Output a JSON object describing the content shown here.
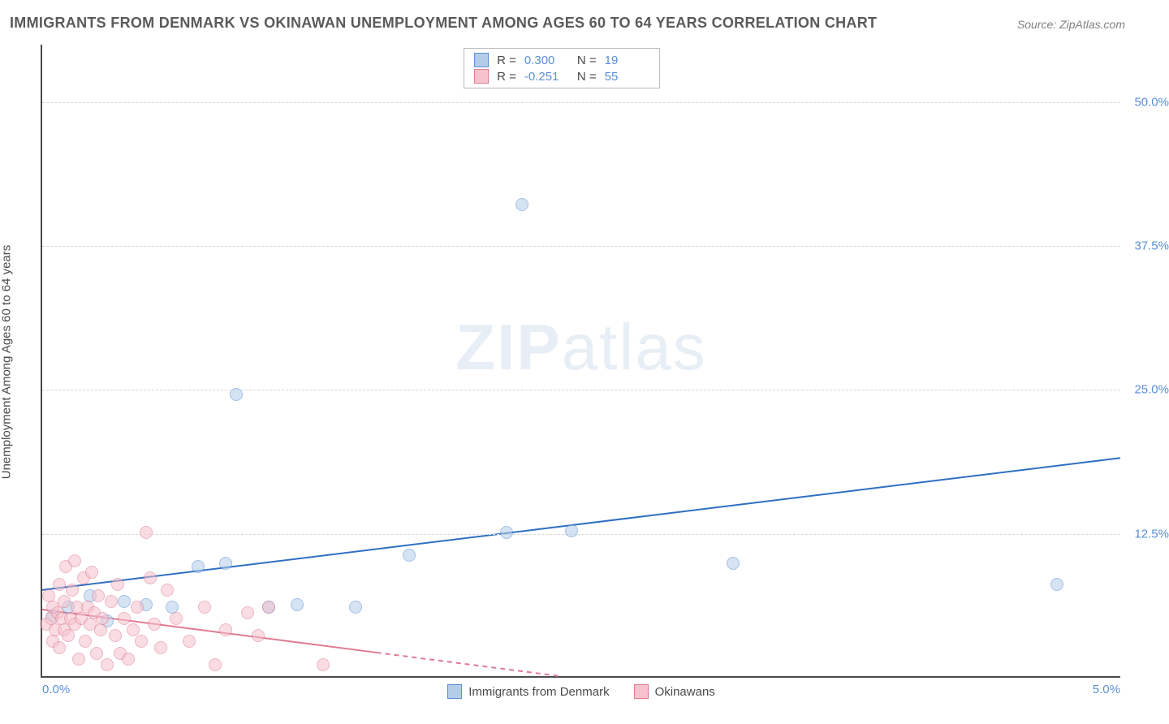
{
  "title": "IMMIGRANTS FROM DENMARK VS OKINAWAN UNEMPLOYMENT AMONG AGES 60 TO 64 YEARS CORRELATION CHART",
  "source": "Source: ZipAtlas.com",
  "ylabel": "Unemployment Among Ages 60 to 64 years",
  "watermark_bold": "ZIP",
  "watermark_rest": "atlas",
  "chart": {
    "type": "scatter-with-trend",
    "xlim": [
      0.0,
      5.0
    ],
    "ylim": [
      0.0,
      55.0
    ],
    "x_tick_left": "0.0%",
    "x_tick_right": "5.0%",
    "y_ticks": [
      {
        "v": 12.5,
        "label": "12.5%"
      },
      {
        "v": 25.0,
        "label": "25.0%"
      },
      {
        "v": 37.5,
        "label": "37.5%"
      },
      {
        "v": 50.0,
        "label": "50.0%"
      }
    ],
    "grid_color": "#d8d8d8",
    "axis_color": "#4a4a4a",
    "background_color": "#ffffff",
    "tick_label_color": "#5b8fd6",
    "point_radius": 8,
    "point_opacity": 0.55,
    "series": [
      {
        "name": "Immigrants from Denmark",
        "fill": "#b3cde8",
        "stroke": "#5b8fd6",
        "line_color": "#2f6fc2",
        "line_width": 2,
        "R": "0.300",
        "N": "19",
        "trend": {
          "x1": 0.0,
          "y1": 7.5,
          "x2": 5.0,
          "y2": 19.0,
          "dashed_from_x": null
        },
        "points": [
          {
            "x": 0.05,
            "y": 5.2
          },
          {
            "x": 0.12,
            "y": 6.0
          },
          {
            "x": 0.22,
            "y": 7.0
          },
          {
            "x": 0.3,
            "y": 4.8
          },
          {
            "x": 0.38,
            "y": 6.5
          },
          {
            "x": 0.48,
            "y": 6.2
          },
          {
            "x": 0.6,
            "y": 6.0
          },
          {
            "x": 0.72,
            "y": 9.5
          },
          {
            "x": 0.85,
            "y": 9.8
          },
          {
            "x": 0.9,
            "y": 24.5
          },
          {
            "x": 1.05,
            "y": 6.0
          },
          {
            "x": 1.18,
            "y": 6.2
          },
          {
            "x": 1.45,
            "y": 6.0
          },
          {
            "x": 1.7,
            "y": 10.5
          },
          {
            "x": 2.15,
            "y": 12.5
          },
          {
            "x": 2.22,
            "y": 41.0
          },
          {
            "x": 2.45,
            "y": 12.6
          },
          {
            "x": 3.2,
            "y": 9.8
          },
          {
            "x": 4.7,
            "y": 8.0
          }
        ]
      },
      {
        "name": "Okinawans",
        "fill": "#f5c2cd",
        "stroke": "#e07a92",
        "line_color": "#e07a92",
        "line_width": 2,
        "R": "-0.251",
        "N": "55",
        "trend": {
          "x1": 0.0,
          "y1": 5.8,
          "x2": 2.4,
          "y2": 0.0,
          "dashed_from_x": 1.55
        },
        "points": [
          {
            "x": 0.02,
            "y": 4.5
          },
          {
            "x": 0.03,
            "y": 7.0
          },
          {
            "x": 0.04,
            "y": 5.0
          },
          {
            "x": 0.05,
            "y": 3.0
          },
          {
            "x": 0.05,
            "y": 6.0
          },
          {
            "x": 0.06,
            "y": 4.0
          },
          {
            "x": 0.07,
            "y": 5.5
          },
          {
            "x": 0.08,
            "y": 2.5
          },
          {
            "x": 0.08,
            "y": 8.0
          },
          {
            "x": 0.09,
            "y": 5.0
          },
          {
            "x": 0.1,
            "y": 4.0
          },
          {
            "x": 0.1,
            "y": 6.5
          },
          {
            "x": 0.11,
            "y": 9.5
          },
          {
            "x": 0.12,
            "y": 3.5
          },
          {
            "x": 0.13,
            "y": 5.0
          },
          {
            "x": 0.14,
            "y": 7.5
          },
          {
            "x": 0.15,
            "y": 4.5
          },
          {
            "x": 0.15,
            "y": 10.0
          },
          {
            "x": 0.16,
            "y": 6.0
          },
          {
            "x": 0.17,
            "y": 1.5
          },
          {
            "x": 0.18,
            "y": 5.0
          },
          {
            "x": 0.19,
            "y": 8.5
          },
          {
            "x": 0.2,
            "y": 3.0
          },
          {
            "x": 0.21,
            "y": 6.0
          },
          {
            "x": 0.22,
            "y": 4.5
          },
          {
            "x": 0.23,
            "y": 9.0
          },
          {
            "x": 0.24,
            "y": 5.5
          },
          {
            "x": 0.25,
            "y": 2.0
          },
          {
            "x": 0.26,
            "y": 7.0
          },
          {
            "x": 0.27,
            "y": 4.0
          },
          {
            "x": 0.28,
            "y": 5.0
          },
          {
            "x": 0.3,
            "y": 1.0
          },
          {
            "x": 0.32,
            "y": 6.5
          },
          {
            "x": 0.34,
            "y": 3.5
          },
          {
            "x": 0.35,
            "y": 8.0
          },
          {
            "x": 0.36,
            "y": 2.0
          },
          {
            "x": 0.38,
            "y": 5.0
          },
          {
            "x": 0.4,
            "y": 1.5
          },
          {
            "x": 0.42,
            "y": 4.0
          },
          {
            "x": 0.44,
            "y": 6.0
          },
          {
            "x": 0.46,
            "y": 3.0
          },
          {
            "x": 0.48,
            "y": 12.5
          },
          {
            "x": 0.5,
            "y": 8.5
          },
          {
            "x": 0.52,
            "y": 4.5
          },
          {
            "x": 0.55,
            "y": 2.5
          },
          {
            "x": 0.58,
            "y": 7.5
          },
          {
            "x": 0.62,
            "y": 5.0
          },
          {
            "x": 0.68,
            "y": 3.0
          },
          {
            "x": 0.75,
            "y": 6.0
          },
          {
            "x": 0.8,
            "y": 1.0
          },
          {
            "x": 0.85,
            "y": 4.0
          },
          {
            "x": 0.95,
            "y": 5.5
          },
          {
            "x": 1.0,
            "y": 3.5
          },
          {
            "x": 1.05,
            "y": 6.0
          },
          {
            "x": 1.3,
            "y": 1.0
          }
        ]
      }
    ]
  },
  "legend_bottom": [
    {
      "label": "Immigrants from Denmark",
      "fill": "#b3cde8",
      "stroke": "#5b8fd6"
    },
    {
      "label": "Okinawans",
      "fill": "#f5c2cd",
      "stroke": "#e07a92"
    }
  ]
}
